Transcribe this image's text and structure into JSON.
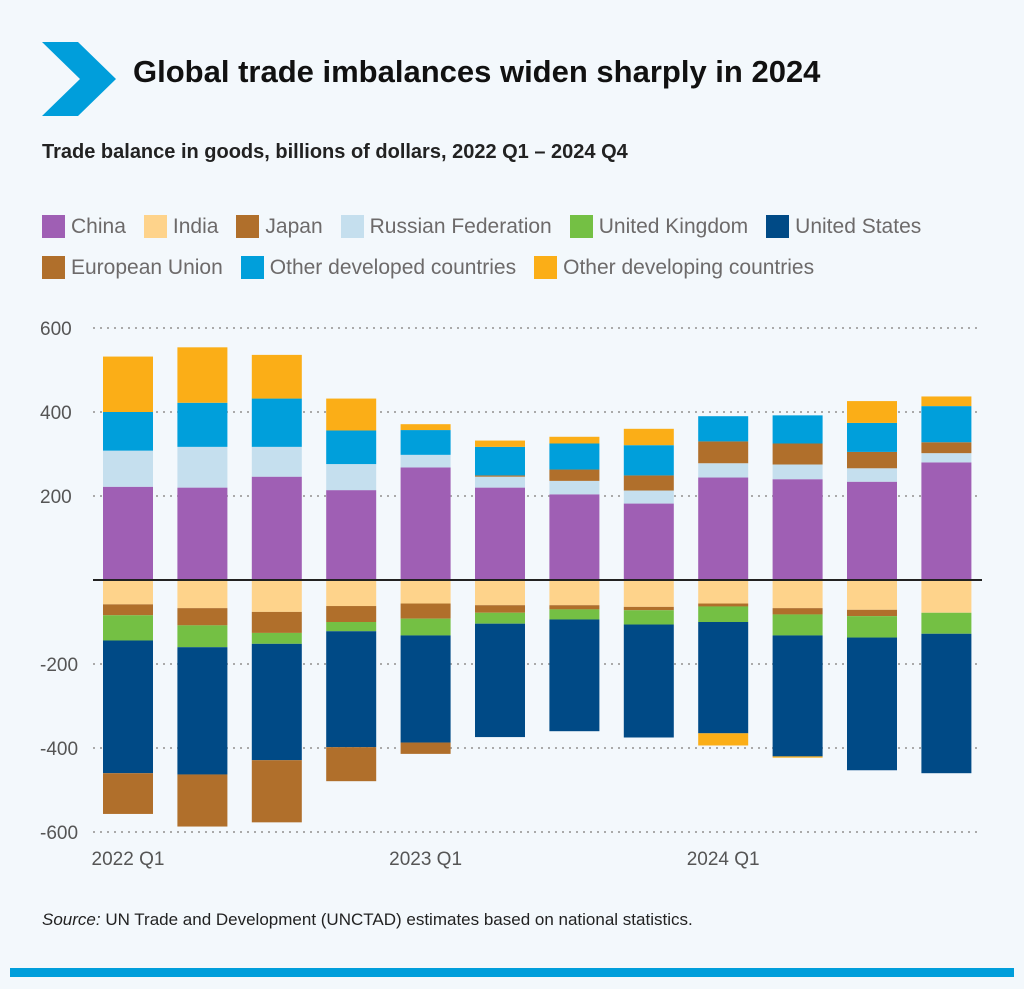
{
  "header": {
    "title": "Global trade imbalances widen sharply in 2024",
    "subtitle": "Trade balance in goods, billions of dollars, 2022 Q1 – 2024 Q4",
    "accent_color": "#009edb"
  },
  "source": {
    "label": "Source:",
    "text": " UN Trade and Development (UNCTAD) estimates based on national statistics."
  },
  "chart_data": {
    "type": "bar",
    "stacked": true,
    "title": "Global trade imbalances widen sharply in 2024",
    "subtitle": "Trade balance in goods, billions of dollars, 2022 Q1 – 2024 Q4",
    "xlabel": "",
    "ylabel": "",
    "ylim": [
      -600,
      600
    ],
    "yticks": [
      600,
      400,
      200,
      0,
      -200,
      -400,
      -600
    ],
    "ytick_labels": [
      "600",
      "400",
      "200",
      "",
      "-200",
      "-400",
      "-600"
    ],
    "grid": true,
    "legend_placement": "top",
    "categories": [
      "2022 Q1",
      "2022 Q2",
      "2022 Q3",
      "2022 Q4",
      "2023 Q1",
      "2023 Q2",
      "2023 Q3",
      "2023 Q4",
      "2024 Q1",
      "2024 Q2",
      "2024 Q3",
      "2024 Q4"
    ],
    "xtick_labels": [
      {
        "index": 0,
        "label": "2022 Q1"
      },
      {
        "index": 4,
        "label": "2023 Q1"
      },
      {
        "index": 8,
        "label": "2024 Q1"
      }
    ],
    "series": [
      {
        "name": "China",
        "color": "#9f5fb4",
        "values": [
          222,
          220,
          246,
          214,
          268,
          220,
          204,
          182,
          244,
          240,
          234,
          280
        ]
      },
      {
        "name": "India",
        "color": "#fed38b",
        "values": [
          -58,
          -67,
          -76,
          -62,
          -56,
          -60,
          -60,
          -64,
          -56,
          -67,
          -71,
          -78
        ]
      },
      {
        "name": "Japan",
        "color": "#b06f2b",
        "values": [
          -26,
          -41,
          -50,
          -38,
          -36,
          -18,
          -10,
          -8,
          -7,
          -15,
          -15,
          0
        ]
      },
      {
        "name": "Russian Federation",
        "color": "#c5dfee",
        "values": [
          86,
          97,
          71,
          62,
          30,
          26,
          32,
          31,
          34,
          35,
          32,
          22
        ]
      },
      {
        "name": "United Kingdom",
        "color": "#74c044",
        "values": [
          -60,
          -52,
          -26,
          -22,
          -40,
          -26,
          -24,
          -34,
          -37,
          -50,
          -51,
          -50
        ]
      },
      {
        "name": "United States",
        "color": "#004a86",
        "values": [
          -316,
          -303,
          -277,
          -276,
          -255,
          -270,
          -266,
          -269,
          -265,
          -288,
          -316,
          -332
        ]
      },
      {
        "name": "European Union",
        "color": "#b06f2b",
        "values": [
          -97,
          -124,
          -148,
          -81,
          -27,
          3,
          27,
          36,
          52,
          50,
          39,
          26
        ]
      },
      {
        "name": "Other developed countries",
        "color": "#009fdb",
        "values": [
          92,
          105,
          115,
          80,
          59,
          68,
          62,
          72,
          60,
          67,
          69,
          86
        ]
      },
      {
        "name": "Other developing countries",
        "color": "#fbae17",
        "values": [
          132,
          132,
          104,
          76,
          14,
          15,
          16,
          39,
          -29,
          -3,
          52,
          23
        ]
      }
    ]
  }
}
